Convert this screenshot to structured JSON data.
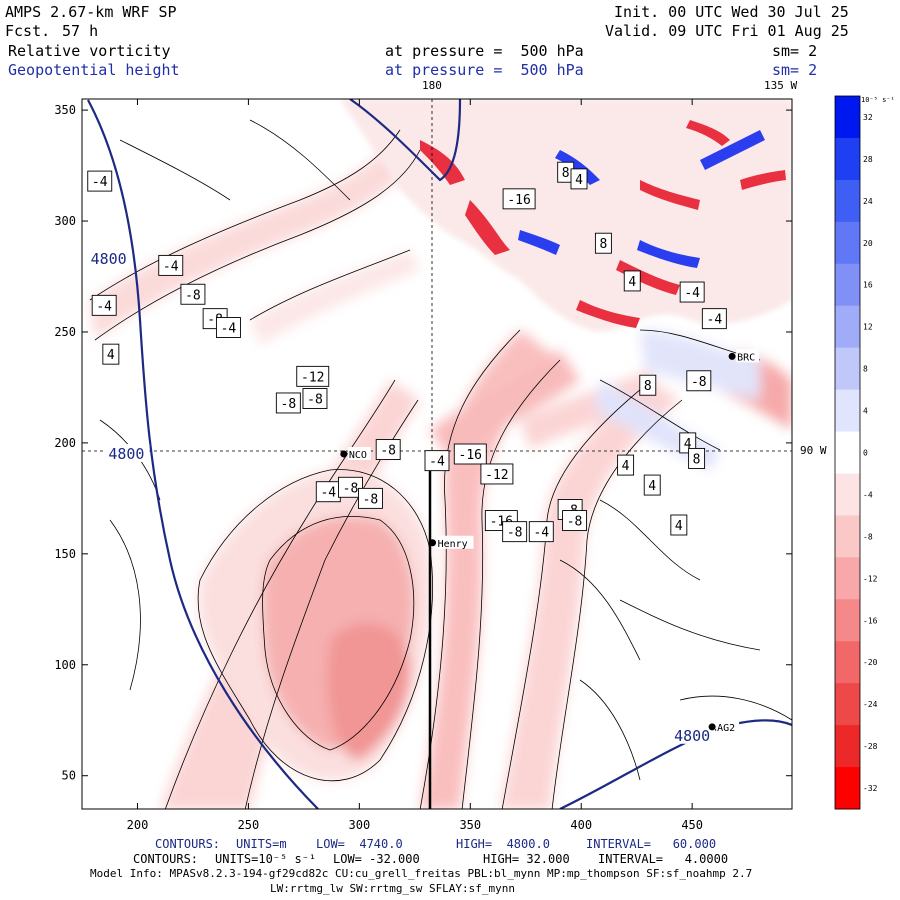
{
  "header": {
    "model": "AMPS 2.67-km WRF SP",
    "fcst_label": "Fcst.",
    "fcst_value": "57 h",
    "init": "Init. 00 UTC Wed 30 Jul 25",
    "valid": "Valid. 09 UTC Fri 01 Aug 25",
    "field1_name": "Relative vorticity",
    "field1_level": "at pressure =  500 hPa",
    "field1_smooth": "sm= 2",
    "field2_name": "Geopotential height",
    "field2_level": "at pressure =  500 hPa",
    "field2_smooth": "sm= 2"
  },
  "map_labels": {
    "lon_180": "180",
    "lon_135w": "135 W",
    "lon_90w": "90 W",
    "stations": [
      {
        "name": "NCO",
        "x": 293,
        "y": 195
      },
      {
        "name": "Henry",
        "x": 333,
        "y": 155
      },
      {
        "name": "BRC",
        "x": 468,
        "y": 239
      },
      {
        "name": "AG2",
        "x": 459,
        "y": 72
      }
    ]
  },
  "colors": {
    "height_contour": "#1c2a84",
    "neg_vort": "#e8303a",
    "pos_vort": "#2030e0"
  },
  "colorbar": {
    "unit_label": "10⁻⁵ s⁻¹",
    "ticks": [
      "32",
      "28",
      "24",
      "20",
      "16",
      "12",
      "8",
      "4",
      "0",
      "-4",
      "-8",
      "-12",
      "-16",
      "-20",
      "-24",
      "-28",
      "-32"
    ],
    "colors": [
      "#0018f0",
      "#1e3ff2",
      "#3f5ff4",
      "#6078f5",
      "#8090f6",
      "#a0acf7",
      "#c0c8f9",
      "#e0e4fc",
      "#ffffff",
      "#fde4e4",
      "#fbc8c8",
      "#f8a8a8",
      "#f58888",
      "#f26868",
      "#ef4848",
      "#ec2828",
      "#ff0000"
    ]
  },
  "footer": {
    "c1_label": "CONTOURS:",
    "c1_units": "UNITS=m",
    "c1_low": "LOW=  4740.0",
    "c1_high": "HIGH=  4800.0",
    "c1_interval": "INTERVAL=   60.000",
    "c2_label": "CONTOURS:",
    "c2_units": "UNITS=10⁻⁵ s⁻¹",
    "c2_low": "LOW= -32.000",
    "c2_high": "HIGH= 32.000",
    "c2_interval": "INTERVAL=   4.0000",
    "model_info": "Model Info: MPASv8.2.3-194-gf29cd82c CU:cu_grell_freitas PBL:bl_mynn MP:mp_thompson SF:sf_noahmp 2.7",
    "model_info2": "LW:rrtmg_lw SW:rrtmg_sw SFLAY:sf_mynn"
  },
  "chart_data": {
    "type": "heatmap",
    "fields": [
      "Relative vorticity",
      "Geopotential height"
    ],
    "x_ticks": [
      200,
      250,
      300,
      350,
      400,
      450
    ],
    "y_ticks": [
      50,
      100,
      150,
      200,
      250,
      300,
      350
    ],
    "xlim": [
      175,
      495
    ],
    "ylim": [
      35,
      355
    ],
    "height_contour_labels": [
      {
        "text": "4800",
        "x": 187,
        "y": 283
      },
      {
        "text": "4800",
        "x": 195,
        "y": 195
      },
      {
        "text": "4800",
        "x": 450,
        "y": 68
      }
    ],
    "vorticity_labels": [
      {
        "text": "-4",
        "x": 183,
        "y": 318
      },
      {
        "text": "-4",
        "x": 185,
        "y": 262
      },
      {
        "text": "4",
        "x": 188,
        "y": 240
      },
      {
        "text": "-4",
        "x": 215,
        "y": 280
      },
      {
        "text": "-8",
        "x": 225,
        "y": 267
      },
      {
        "text": "-8",
        "x": 235,
        "y": 256
      },
      {
        "text": "-4",
        "x": 241,
        "y": 252
      },
      {
        "text": "-8",
        "x": 268,
        "y": 218
      },
      {
        "text": "-12",
        "x": 279,
        "y": 230
      },
      {
        "text": "-8",
        "x": 280,
        "y": 220
      },
      {
        "text": "-4",
        "x": 286,
        "y": 178
      },
      {
        "text": "-8",
        "x": 296,
        "y": 180
      },
      {
        "text": "-8",
        "x": 305,
        "y": 175
      },
      {
        "text": "-4",
        "x": 335,
        "y": 192
      },
      {
        "text": "-8",
        "x": 313,
        "y": 197
      },
      {
        "text": "-16",
        "x": 350,
        "y": 195
      },
      {
        "text": "-8",
        "x": 395,
        "y": 170
      },
      {
        "text": "-12",
        "x": 362,
        "y": 186
      },
      {
        "text": "-4",
        "x": 382,
        "y": 160
      },
      {
        "text": "-8",
        "x": 397,
        "y": 165
      },
      {
        "text": "-16",
        "x": 364,
        "y": 165
      },
      {
        "text": "-8",
        "x": 370,
        "y": 160
      },
      {
        "text": "8",
        "x": 393,
        "y": 322
      },
      {
        "text": "-16",
        "x": 372,
        "y": 310
      },
      {
        "text": "4",
        "x": 399,
        "y": 319
      },
      {
        "text": "8",
        "x": 410,
        "y": 290
      },
      {
        "text": "4",
        "x": 423,
        "y": 273
      },
      {
        "text": "-4",
        "x": 450,
        "y": 268
      },
      {
        "text": "-4",
        "x": 460,
        "y": 256
      },
      {
        "text": "-8",
        "x": 453,
        "y": 228
      },
      {
        "text": "8",
        "x": 430,
        "y": 226
      },
      {
        "text": "4",
        "x": 448,
        "y": 200
      },
      {
        "text": "4",
        "x": 420,
        "y": 190
      },
      {
        "text": "8",
        "x": 452,
        "y": 193
      },
      {
        "text": "4",
        "x": 432,
        "y": 181
      },
      {
        "text": "4",
        "x": 444,
        "y": 163
      }
    ]
  }
}
